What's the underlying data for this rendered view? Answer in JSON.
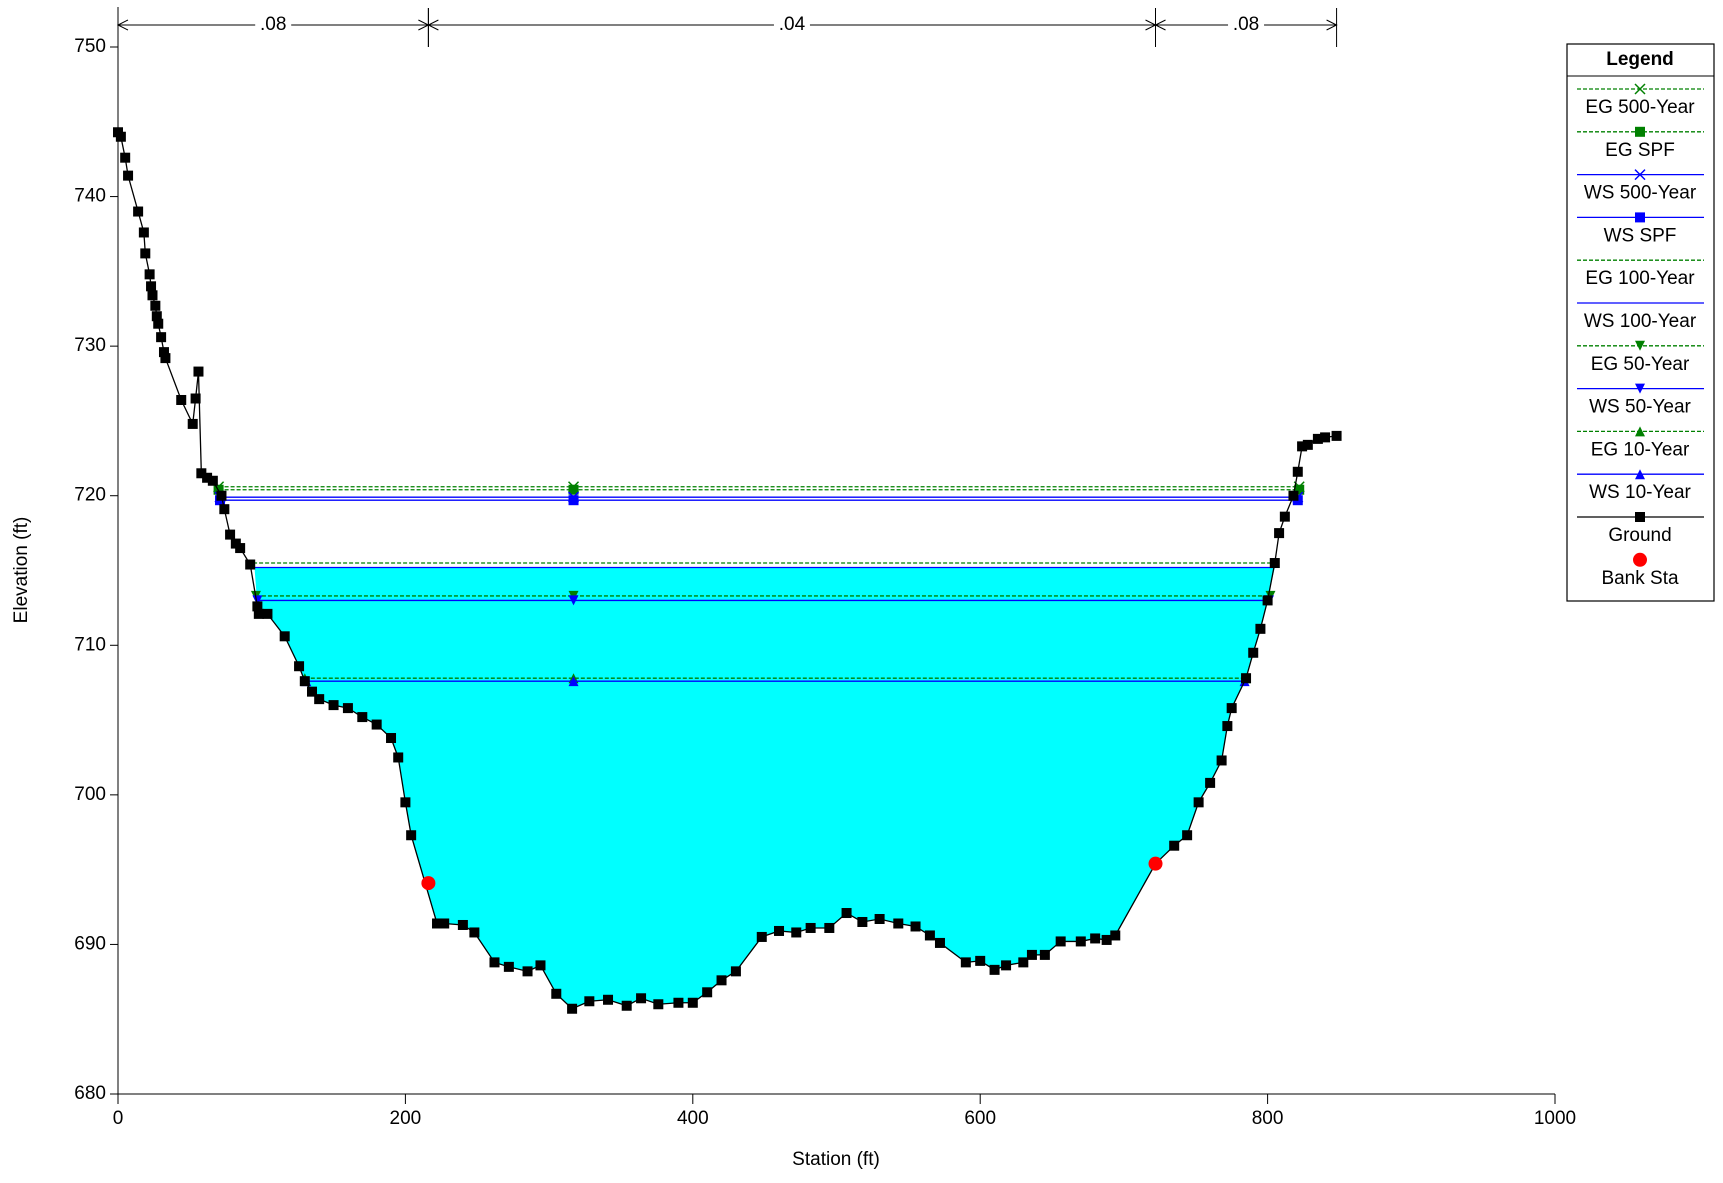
{
  "chart_data": {
    "type": "cross-section",
    "xlabel": "Station (ft)",
    "ylabel": "Elevation (ft)",
    "xlim": [
      0,
      1000
    ],
    "xticks": [
      0,
      200,
      400,
      600,
      800,
      1000
    ],
    "ylim": [
      680,
      750
    ],
    "yticks": [
      680,
      690,
      700,
      710,
      720,
      730,
      740,
      750
    ],
    "legend_title": "Legend",
    "legend": "right",
    "fill_color": "#00ffff",
    "fill_series": "WS 100-Year",
    "n_values": [
      {
        "label": ".08",
        "from": 0,
        "to": 216
      },
      {
        "label": ".04",
        "from": 216,
        "to": 722
      },
      {
        "label": ".08",
        "from": 722,
        "to": 848
      }
    ],
    "series": [
      {
        "name": "EG 500-Year",
        "color": "#008000",
        "dash": true,
        "marker": "x",
        "value": 720.6,
        "x": [
          70,
          822
        ]
      },
      {
        "name": "EG SPF",
        "color": "#008000",
        "dash": true,
        "marker": "square",
        "value": 720.4,
        "x": [
          70,
          822
        ]
      },
      {
        "name": "WS 500-Year",
        "color": "#0000ff",
        "dash": false,
        "marker": "x",
        "value": 719.9,
        "x": [
          71,
          821
        ]
      },
      {
        "name": "WS SPF",
        "color": "#0000ff",
        "dash": false,
        "marker": "square",
        "value": 719.7,
        "x": [
          71,
          821
        ]
      },
      {
        "name": "EG 100-Year",
        "color": "#008000",
        "dash": true,
        "marker": "none",
        "value": 715.5,
        "x": [
          94,
          806
        ]
      },
      {
        "name": "WS 100-Year",
        "color": "#0000ff",
        "dash": false,
        "marker": "none",
        "value": 715.2,
        "x": [
          95,
          805
        ]
      },
      {
        "name": "EG 50-Year",
        "color": "#008000",
        "dash": true,
        "marker": "triangle-down",
        "value": 713.3,
        "x": [
          96,
          802
        ]
      },
      {
        "name": "WS 50-Year",
        "color": "#0000ff",
        "dash": false,
        "marker": "triangle-down",
        "value": 713.0,
        "x": [
          97,
          801
        ]
      },
      {
        "name": "EG 10-Year",
        "color": "#008000",
        "dash": true,
        "marker": "triangle",
        "value": 707.8,
        "x": [
          130,
          785
        ]
      },
      {
        "name": "WS 10-Year",
        "color": "#0000ff",
        "dash": false,
        "marker": "triangle",
        "value": 707.6,
        "x": [
          131,
          784
        ]
      }
    ],
    "ground": {
      "name": "Ground",
      "color": "#000000",
      "x": [
        0,
        2,
        5,
        7,
        14,
        18,
        19,
        22,
        23,
        24,
        26,
        27,
        28,
        30,
        32,
        33,
        44,
        52,
        54,
        56,
        58,
        62,
        66,
        72,
        74,
        78,
        82,
        85,
        92,
        97,
        98,
        104,
        116,
        126,
        130,
        135,
        140,
        150,
        160,
        170,
        180,
        190,
        195,
        200,
        204,
        222,
        227,
        240,
        248,
        262,
        272,
        285,
        294,
        305,
        316,
        328,
        341,
        354,
        364,
        376,
        390,
        400,
        410,
        420,
        430,
        448,
        460,
        472,
        482,
        495,
        507,
        518,
        530,
        543,
        555,
        565,
        572,
        590,
        600,
        610,
        618,
        630,
        636,
        645,
        656,
        670,
        680,
        688,
        694,
        722,
        735,
        744,
        752,
        760,
        768,
        772,
        775,
        785,
        790,
        795,
        800,
        805,
        808,
        812,
        818,
        821,
        824,
        828,
        835,
        840,
        848
      ],
      "y": [
        744.3,
        744,
        742.6,
        741.4,
        739,
        737.6,
        736.2,
        734.8,
        734,
        733.4,
        732.7,
        732,
        731.5,
        730.6,
        729.6,
        729.2,
        726.4,
        724.8,
        726.5,
        728.3,
        721.5,
        721.2,
        721,
        720,
        719.1,
        717.4,
        716.8,
        716.5,
        715.4,
        712.6,
        712.1,
        712.1,
        710.6,
        708.6,
        707.6,
        706.9,
        706.4,
        706,
        705.8,
        705.2,
        704.7,
        703.8,
        702.5,
        699.5,
        697.3,
        691.4,
        691.4,
        691.3,
        690.8,
        688.8,
        688.5,
        688.2,
        688.6,
        686.7,
        685.7,
        686.2,
        686.3,
        685.9,
        686.4,
        686,
        686.1,
        686.1,
        686.8,
        687.6,
        688.2,
        690.5,
        690.9,
        690.8,
        691.1,
        691.1,
        692.1,
        691.5,
        691.7,
        691.4,
        691.2,
        690.6,
        690.1,
        688.8,
        688.9,
        688.3,
        688.6,
        688.8,
        689.3,
        689.3,
        690.2,
        690.2,
        690.4,
        690.3,
        690.6,
        695.4,
        696.6,
        697.3,
        699.5,
        700.8,
        702.3,
        704.6,
        705.8,
        707.8,
        709.5,
        711.1,
        713,
        715.5,
        717.5,
        718.6,
        720,
        721.6,
        723.3,
        723.4,
        723.8,
        723.9,
        724
      ]
    },
    "bank_stations": {
      "name": "Bank Sta",
      "color": "#ff0000",
      "x": [
        216,
        722
      ],
      "y": [
        694.1,
        695.4
      ]
    }
  }
}
